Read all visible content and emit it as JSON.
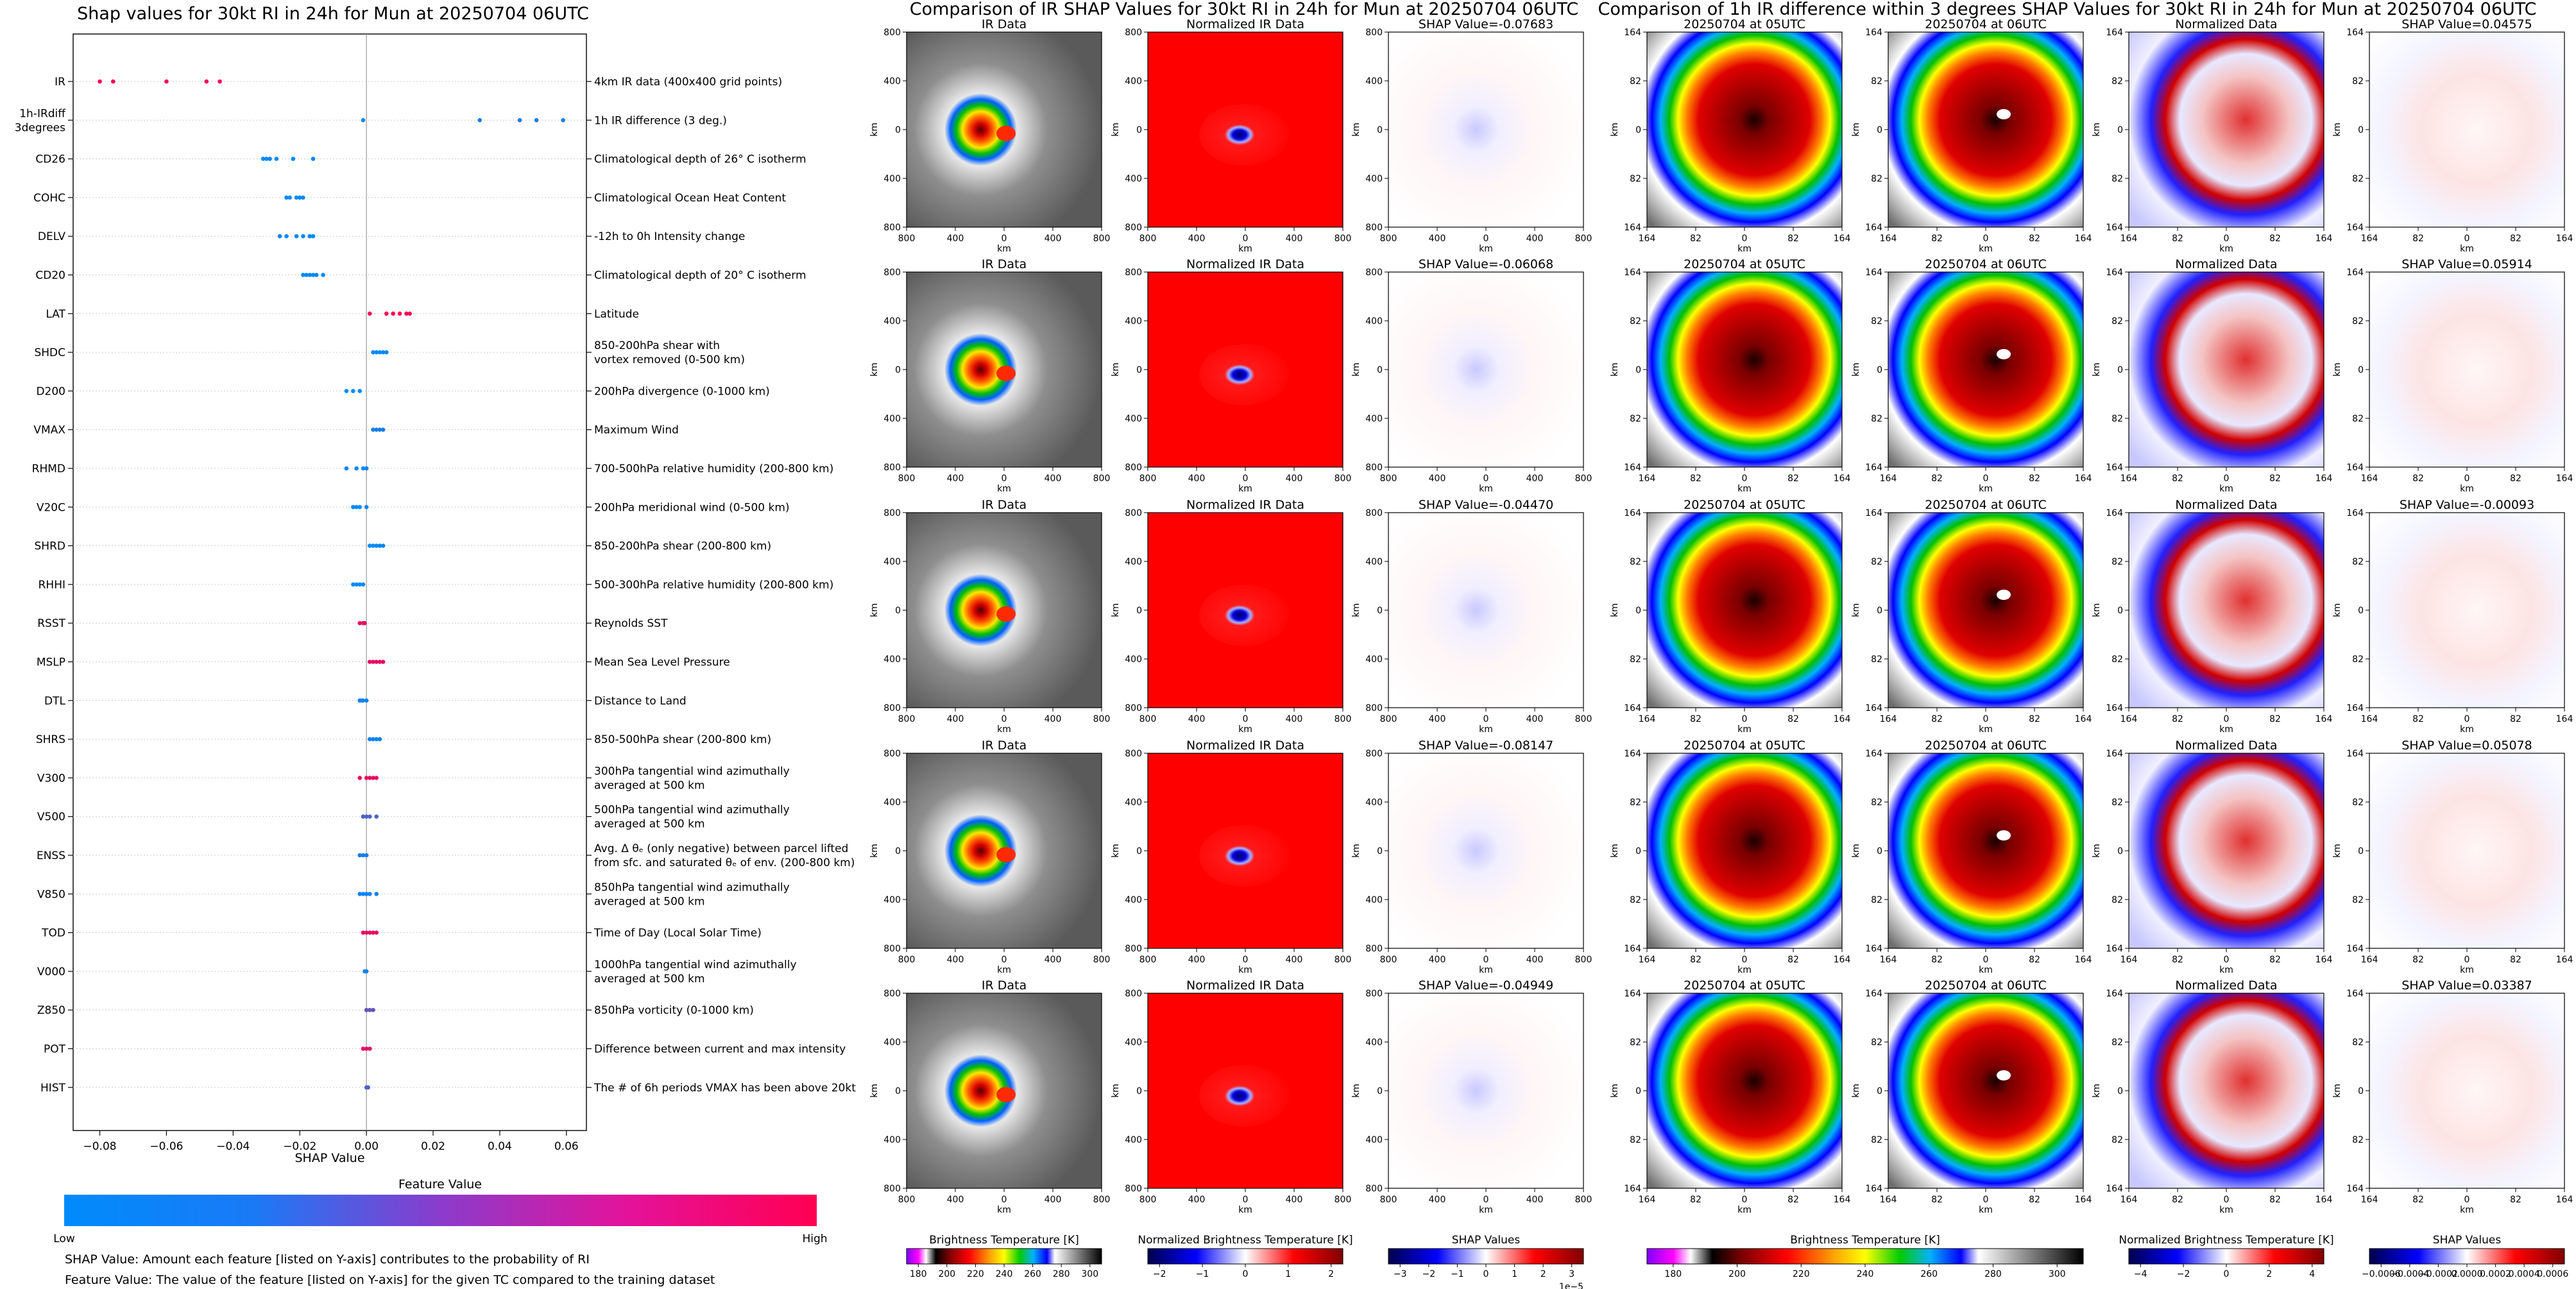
{
  "shap_panel": {
    "title": "Shap values for 30kt RI in 24h for Mun at 20250704 06UTC",
    "colorbar_title": "Feature Value",
    "colorbar_low": "Low",
    "colorbar_high": "High",
    "colors": {
      "low": "#008bfb",
      "high": "#ff0052"
    },
    "footnotes": [
      "SHAP Value: Amount each feature [listed on Y-axis] contributes to the probability of RI",
      "Feature Value: The value of the feature [listed on Y-axis] for the given TC compared to the training dataset"
    ]
  },
  "ir_group": {
    "title": "Comparison of IR SHAP Values for 30kt RI in 24h for Mun at 20250704 06UTC",
    "col_titles": [
      "IR Data",
      "Normalized IR Data"
    ],
    "shap_titles": [
      "SHAP Value=-0.07683",
      "SHAP Value=-0.06068",
      "SHAP Value=-0.04470",
      "SHAP Value=-0.08147",
      "SHAP Value=-0.04949"
    ],
    "y_ticks": [
      "800",
      "400",
      "0",
      "400",
      "800"
    ],
    "x_ticks": [
      "800",
      "400",
      "0",
      "400",
      "800"
    ],
    "axis_unit": "km",
    "colorbars": [
      {
        "label": "Brightness Temperature [K]",
        "ticks": [
          "180",
          "200",
          "220",
          "240",
          "260",
          "280",
          "300"
        ]
      },
      {
        "label": "Normalized Brightness Temperature [K]",
        "ticks": [
          "−2",
          "−1",
          "0",
          "1",
          "2"
        ]
      },
      {
        "label": "SHAP Values",
        "ticks": [
          "−3",
          "−2",
          "−1",
          "0",
          "1",
          "2",
          "3"
        ],
        "exponent": "1e−5"
      }
    ]
  },
  "diff_group": {
    "title": "Comparison of 1h IR difference within 3 degrees SHAP Values for 30kt RI in 24h for Mun at 20250704 06UTC",
    "col_titles": [
      "20250704 at 05UTC",
      "20250704 at 06UTC",
      "Normalized Data"
    ],
    "shap_titles": [
      "SHAP Value=0.04575",
      "SHAP Value=0.05914",
      "SHAP Value=-0.00093",
      "SHAP Value=0.05078",
      "SHAP Value=0.03387"
    ],
    "y_ticks": [
      "164",
      "82",
      "0",
      "82",
      "164"
    ],
    "x_ticks": [
      "164",
      "82",
      "0",
      "82",
      "164"
    ],
    "axis_unit": "km",
    "colorbars": [
      {
        "label": "Brightness Temperature [K]",
        "ticks": [
          "180",
          "200",
          "220",
          "240",
          "260",
          "280",
          "300"
        ]
      },
      {
        "label": "Normalized Brightness Temperature [K]",
        "ticks": [
          "−4",
          "−2",
          "0",
          "2",
          "4"
        ]
      },
      {
        "label": "SHAP Values",
        "ticks": [
          "−0.0006",
          "−0.0004",
          "−0.0002",
          "0.0000",
          "0.0002",
          "0.0004",
          "0.0006"
        ]
      }
    ]
  },
  "chart_data": [
    {
      "type": "scatter",
      "title": "Shap values for 30kt RI in 24h for Mun at 20250704 06UTC",
      "xlabel": "SHAP Value",
      "ylabel": "",
      "xlim": [
        -0.088,
        0.066
      ],
      "x_ticks": [
        -0.08,
        -0.06,
        -0.04,
        -0.02,
        0.0,
        0.02,
        0.04,
        0.06
      ],
      "x_tick_labels": [
        "−0.08",
        "−0.06",
        "−0.04",
        "−0.02",
        "0.00",
        "0.02",
        "0.04",
        "0.06"
      ],
      "grid": false,
      "features": [
        {
          "name": "IR",
          "description": "4km IR data (400x400 grid points)",
          "points": [
            [
              -0.08,
              1.0
            ],
            [
              -0.076,
              1.0
            ],
            [
              -0.06,
              1.0
            ],
            [
              -0.048,
              1.0
            ],
            [
              -0.044,
              1.0
            ]
          ]
        },
        {
          "name": "1h-IRdiff\n3degrees",
          "description": "1h IR difference (3 deg.)",
          "points": [
            [
              -0.001,
              0.0
            ],
            [
              0.034,
              0.1
            ],
            [
              0.046,
              0.1
            ],
            [
              0.051,
              0.1
            ],
            [
              0.059,
              0.1
            ]
          ]
        },
        {
          "name": "CD26",
          "description": "Climatological depth of 26° C isotherm",
          "points": [
            [
              -0.031,
              0.0
            ],
            [
              -0.03,
              0.0
            ],
            [
              -0.029,
              0.05
            ],
            [
              -0.027,
              0.0
            ],
            [
              -0.022,
              0.0
            ],
            [
              -0.016,
              0.05
            ]
          ]
        },
        {
          "name": "COHC",
          "description": "Climatological Ocean Heat Content",
          "points": [
            [
              -0.024,
              0.0
            ],
            [
              -0.023,
              0.0
            ],
            [
              -0.021,
              0.0
            ],
            [
              -0.02,
              0.05
            ],
            [
              -0.019,
              0.0
            ]
          ]
        },
        {
          "name": "DELV",
          "description": "-12h to 0h Intensity change",
          "points": [
            [
              -0.026,
              0.05
            ],
            [
              -0.024,
              0.0
            ],
            [
              -0.021,
              0.05
            ],
            [
              -0.019,
              0.0
            ],
            [
              -0.017,
              0.05
            ],
            [
              -0.016,
              0.0
            ]
          ]
        },
        {
          "name": "CD20",
          "description": "Climatological depth of 20° C isotherm",
          "points": [
            [
              -0.019,
              0.0
            ],
            [
              -0.018,
              0.0
            ],
            [
              -0.017,
              0.0
            ],
            [
              -0.016,
              0.0
            ],
            [
              -0.015,
              0.05
            ],
            [
              -0.013,
              0.0
            ]
          ]
        },
        {
          "name": "LAT",
          "description": "Latitude",
          "points": [
            [
              0.001,
              1.0
            ],
            [
              0.006,
              1.0
            ],
            [
              0.008,
              1.0
            ],
            [
              0.01,
              1.0
            ],
            [
              0.012,
              1.0
            ],
            [
              0.013,
              1.0
            ]
          ]
        },
        {
          "name": "SHDC",
          "description": "850-200hPa shear with\nvortex removed (0-500 km)",
          "points": [
            [
              0.002,
              0.0
            ],
            [
              0.003,
              0.0
            ],
            [
              0.004,
              0.0
            ],
            [
              0.005,
              0.0
            ],
            [
              0.006,
              0.0
            ]
          ]
        },
        {
          "name": "D200",
          "description": "200hPa divergence (0-1000 km)",
          "points": [
            [
              -0.006,
              0.0
            ],
            [
              -0.004,
              0.0
            ],
            [
              -0.002,
              0.0
            ]
          ]
        },
        {
          "name": "VMAX",
          "description": "Maximum Wind",
          "points": [
            [
              0.002,
              0.1
            ],
            [
              0.003,
              0.1
            ],
            [
              0.004,
              0.1
            ],
            [
              0.005,
              0.1
            ]
          ]
        },
        {
          "name": "RHMD",
          "description": "700-500hPa relative humidity (200-800 km)",
          "points": [
            [
              -0.006,
              0.05
            ],
            [
              -0.003,
              0.0
            ],
            [
              -0.001,
              0.0
            ],
            [
              0.0,
              0.05
            ]
          ]
        },
        {
          "name": "V20C",
          "description": "200hPa meridional wind (0-500 km)",
          "points": [
            [
              -0.004,
              0.0
            ],
            [
              -0.003,
              0.0
            ],
            [
              -0.002,
              0.0
            ],
            [
              0.0,
              0.05
            ]
          ]
        },
        {
          "name": "SHRD",
          "description": "850-200hPa shear (200-800 km)",
          "points": [
            [
              0.001,
              0.0
            ],
            [
              0.002,
              0.0
            ],
            [
              0.003,
              0.0
            ],
            [
              0.004,
              0.05
            ],
            [
              0.005,
              0.05
            ]
          ]
        },
        {
          "name": "RHHI",
          "description": "500-300hPa relative humidity (200-800 km)",
          "points": [
            [
              -0.004,
              0.0
            ],
            [
              -0.003,
              0.0
            ],
            [
              -0.002,
              0.0
            ],
            [
              -0.001,
              0.0
            ]
          ]
        },
        {
          "name": "RSST",
          "description": "Reynolds SST",
          "points": [
            [
              -0.002,
              0.9
            ],
            [
              -0.001,
              0.9
            ],
            [
              -0.0005,
              0.9
            ]
          ]
        },
        {
          "name": "MSLP",
          "description": "Mean Sea Level Pressure",
          "points": [
            [
              0.001,
              0.9
            ],
            [
              0.002,
              0.9
            ],
            [
              0.003,
              0.9
            ],
            [
              0.004,
              0.9
            ],
            [
              0.005,
              0.9
            ]
          ]
        },
        {
          "name": "DTL",
          "description": "Distance to Land",
          "points": [
            [
              -0.002,
              0.05
            ],
            [
              -0.001,
              0.05
            ],
            [
              0.0,
              0.05
            ],
            [
              -0.0015,
              0.05
            ]
          ]
        },
        {
          "name": "SHRS",
          "description": "850-500hPa shear (200-800 km)",
          "points": [
            [
              0.001,
              0.05
            ],
            [
              0.002,
              0.05
            ],
            [
              0.003,
              0.05
            ],
            [
              0.004,
              0.05
            ]
          ]
        },
        {
          "name": "V300",
          "description": "300hPa tangential wind azimuthally\naveraged at 500 km",
          "points": [
            [
              -0.002,
              0.9
            ],
            [
              0.0,
              0.9
            ],
            [
              0.001,
              0.9
            ],
            [
              0.002,
              0.9
            ],
            [
              0.003,
              0.9
            ]
          ]
        },
        {
          "name": "V500",
          "description": "500hPa tangential wind azimuthally\naveraged at 500 km",
          "points": [
            [
              -0.001,
              0.3
            ],
            [
              0.0,
              0.3
            ],
            [
              0.001,
              0.3
            ],
            [
              0.003,
              0.3
            ]
          ]
        },
        {
          "name": "ENSS",
          "description": "Avg. Δ θₑ (only negative) between parcel lifted\nfrom sfc. and saturated θₑ of env. (200-800 km)",
          "points": [
            [
              -0.002,
              0.1
            ],
            [
              -0.001,
              0.1
            ],
            [
              0.0,
              0.1
            ]
          ]
        },
        {
          "name": "V850",
          "description": "850hPa tangential wind azimuthally\naveraged at 500 km",
          "points": [
            [
              -0.002,
              0.05
            ],
            [
              -0.001,
              0.05
            ],
            [
              0.0,
              0.05
            ],
            [
              0.001,
              0.05
            ],
            [
              0.003,
              0.05
            ]
          ]
        },
        {
          "name": "TOD",
          "description": "Time of Day (Local Solar Time)",
          "points": [
            [
              -0.001,
              0.9
            ],
            [
              0.0,
              0.9
            ],
            [
              0.001,
              0.9
            ],
            [
              0.002,
              0.9
            ],
            [
              0.003,
              0.9
            ]
          ]
        },
        {
          "name": "V000",
          "description": "1000hPa tangential wind azimuthally\naveraged at 500 km",
          "points": [
            [
              -0.0005,
              0.05
            ],
            [
              0.0,
              0.05
            ]
          ]
        },
        {
          "name": "Z850",
          "description": "850hPa vorticity (0-1000 km)",
          "points": [
            [
              0.0,
              0.4
            ],
            [
              0.001,
              0.4
            ],
            [
              0.002,
              0.4
            ]
          ]
        },
        {
          "name": "POT",
          "description": "Difference between current and max intensity",
          "points": [
            [
              -0.001,
              0.9
            ],
            [
              0.0,
              0.9
            ],
            [
              0.001,
              0.9
            ]
          ]
        },
        {
          "name": "HIST",
          "description": "The # of 6h periods VMAX has been above 20kt",
          "points": [
            [
              0.0,
              0.3
            ],
            [
              0.0005,
              0.3
            ]
          ]
        }
      ]
    },
    {
      "type": "heatmap",
      "title": "Comparison of IR SHAP Values for 30kt RI in 24h for Mun at 20250704 06UTC",
      "rows": 5,
      "columns": [
        "IR Data",
        "Normalized IR Data",
        "SHAP"
      ],
      "shap_values": [
        -0.07683,
        -0.06068,
        -0.0447,
        -0.08147,
        -0.04949
      ],
      "xlabel": "km",
      "ylabel": "km",
      "xlim": [
        -800,
        800
      ],
      "ylim": [
        -800,
        800
      ],
      "colorbar_ranges": [
        [
          180,
          310
        ],
        [
          -2.5,
          2.5
        ],
        [
          -3e-05,
          3e-05
        ]
      ]
    },
    {
      "type": "heatmap",
      "title": "Comparison of 1h IR difference within 3 degrees SHAP Values for 30kt RI in 24h for Mun at 20250704 06UTC",
      "rows": 5,
      "columns": [
        "20250704 at 05UTC",
        "20250704 at 06UTC",
        "Normalized Data",
        "SHAP"
      ],
      "shap_values": [
        0.04575,
        0.05914,
        -0.00093,
        0.05078,
        0.03387
      ],
      "xlabel": "km",
      "ylabel": "km",
      "xlim": [
        -164,
        164
      ],
      "ylim": [
        -164,
        164
      ],
      "colorbar_ranges": [
        [
          180,
          310
        ],
        [
          -5,
          5
        ],
        [
          -0.0006,
          0.0006
        ]
      ]
    }
  ]
}
